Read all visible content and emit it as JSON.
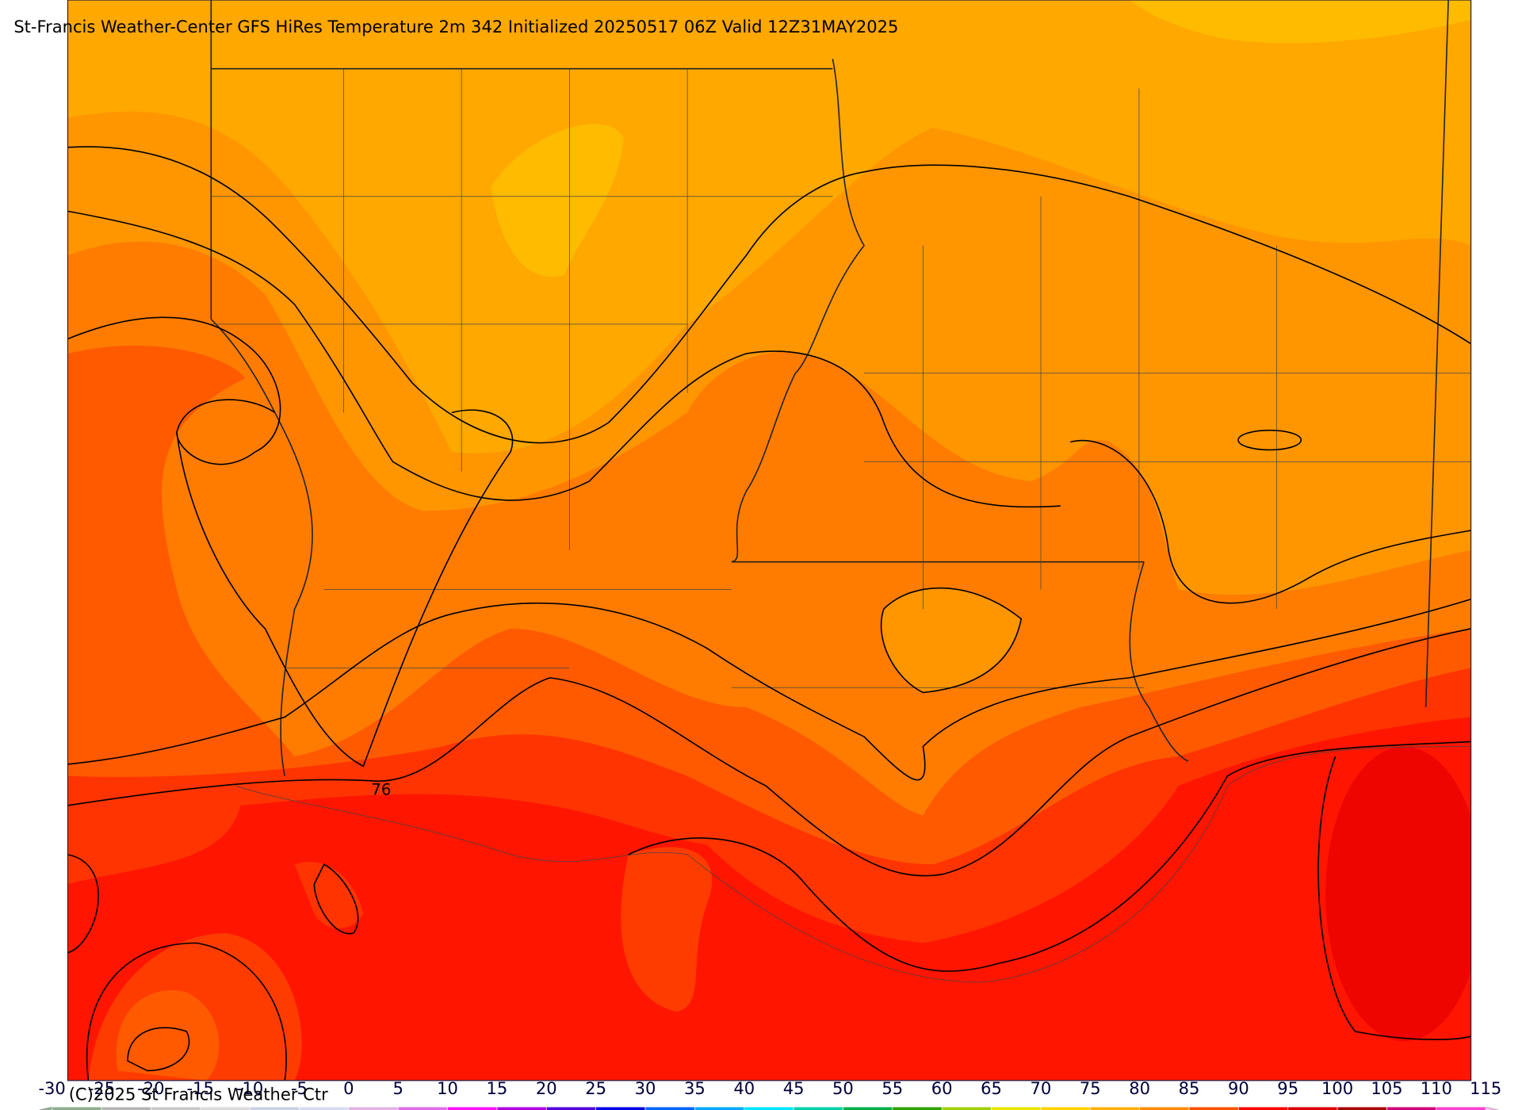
{
  "title": "St-Francis Weather-Center GFS HiRes Temperature 2m  342 Initialized 20250517 06Z Valid 12Z31MAY2025",
  "contour_label": "76",
  "copyright": "(C)2025 St Francis Weather Ctr",
  "colorbar": {
    "ticks": [
      -30,
      -25,
      -20,
      -15,
      -10,
      -5,
      0,
      5,
      10,
      15,
      20,
      25,
      30,
      35,
      40,
      45,
      50,
      55,
      60,
      65,
      70,
      75,
      80,
      85,
      90,
      95,
      100,
      105,
      110,
      115
    ],
    "colors": [
      "#8fae8f",
      "#b4b4b4",
      "#c8c8c8",
      "#dadada",
      "#c9d1e3",
      "#d5dcf2",
      "#e2b4e6",
      "#e06ee6",
      "#ff10ff",
      "#b000e6",
      "#5000e0",
      "#0000e6",
      "#0064ff",
      "#00aaff",
      "#00e6ff",
      "#00d2aa",
      "#00b04a",
      "#30a000",
      "#a0d000",
      "#e6e600",
      "#ffd200",
      "#ffb000",
      "#ff8c00",
      "#ff5000",
      "#ff0000",
      "#dc0000",
      "#aa0000",
      "#d2007a",
      "#ff40d0",
      "#ffbff5"
    ]
  }
}
